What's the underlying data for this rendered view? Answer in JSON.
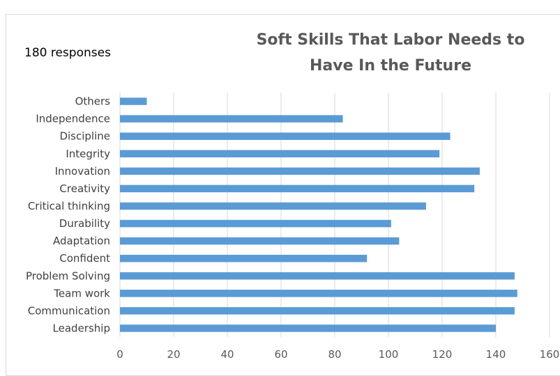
{
  "responses_label": "180 responses",
  "chart_data": {
    "type": "bar",
    "orientation": "horizontal",
    "title_lines": [
      "Soft Skills That Labor Needs to",
      "Have In the Future"
    ],
    "categories": [
      "Leadership",
      "Communication",
      "Team work",
      "Problem Solving",
      "Confident",
      "Adaptation",
      "Durability",
      "Critical thinking",
      "Creativity",
      "Innovation",
      "Integrity",
      "Discipline",
      "Independence",
      "Others"
    ],
    "values": [
      140,
      147,
      148,
      147,
      92,
      104,
      101,
      114,
      132,
      134,
      119,
      123,
      83,
      10
    ],
    "xlim": [
      0,
      160
    ],
    "xticks": [
      0,
      20,
      40,
      60,
      80,
      100,
      120,
      140,
      160
    ],
    "grid": "vertical",
    "legend": "none",
    "bar_color": "#5b9bd5",
    "grid_color": "#d9d9d9"
  }
}
